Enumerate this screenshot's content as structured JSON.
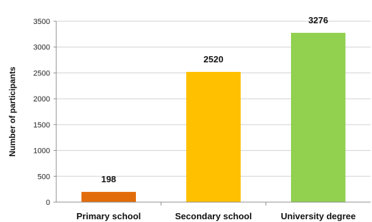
{
  "chart_data": {
    "type": "bar",
    "title": "",
    "xlabel": "",
    "ylabel": "Number of participants",
    "categories": [
      "Primary school",
      "Secondary school",
      "University degree"
    ],
    "values": [
      198,
      2520,
      3276
    ],
    "data_labels": [
      "198",
      "2520",
      "3276"
    ],
    "colors": [
      "#E36C0A",
      "#FFC000",
      "#92D050"
    ],
    "ylim": [
      0,
      3500
    ],
    "yticks": [
      0,
      500,
      1000,
      1500,
      2000,
      2500,
      3000,
      3500
    ],
    "ytick_labels": [
      "0",
      "500",
      "1000",
      "1500",
      "2000",
      "2500",
      "3000",
      "3500"
    ],
    "grid": true,
    "legend": "none"
  }
}
